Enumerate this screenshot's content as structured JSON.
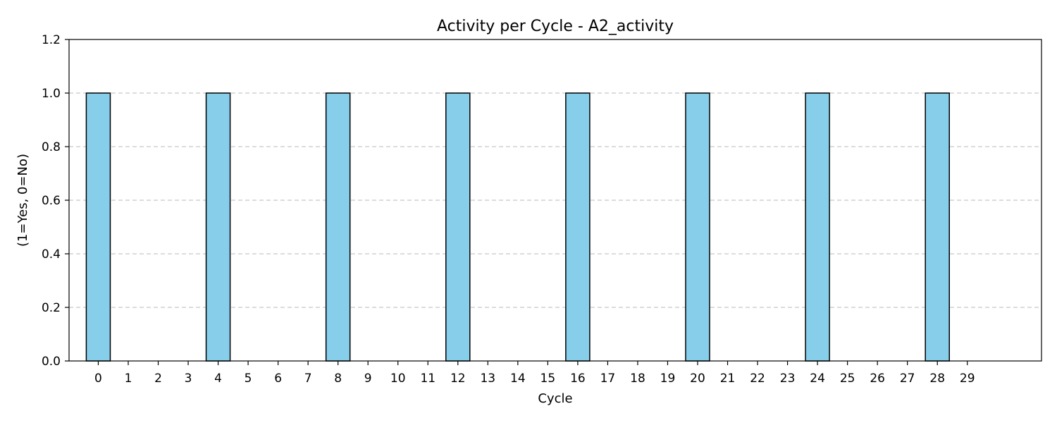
{
  "chart_data": {
    "type": "bar",
    "title": "Activity per Cycle - A2_activity",
    "xlabel": "Cycle",
    "ylabel": "(1=Yes, 0=No)",
    "categories": [
      "0",
      "1",
      "2",
      "3",
      "4",
      "5",
      "6",
      "7",
      "8",
      "9",
      "10",
      "11",
      "12",
      "13",
      "14",
      "15",
      "16",
      "17",
      "18",
      "19",
      "20",
      "21",
      "22",
      "23",
      "24",
      "25",
      "26",
      "27",
      "28",
      "29"
    ],
    "values": [
      1,
      0,
      0,
      0,
      1,
      0,
      0,
      0,
      1,
      0,
      0,
      0,
      1,
      0,
      0,
      0,
      1,
      0,
      0,
      0,
      1,
      0,
      0,
      0,
      1,
      0,
      0,
      0,
      1,
      0
    ],
    "ylim": [
      0,
      1.2
    ],
    "yticks": [
      "0.0",
      "0.2",
      "0.4",
      "0.6",
      "0.8",
      "1.0",
      "1.2"
    ],
    "grid": "y-dashed",
    "bar_color": "#87CEEB",
    "bar_edge_color": "#000000"
  }
}
